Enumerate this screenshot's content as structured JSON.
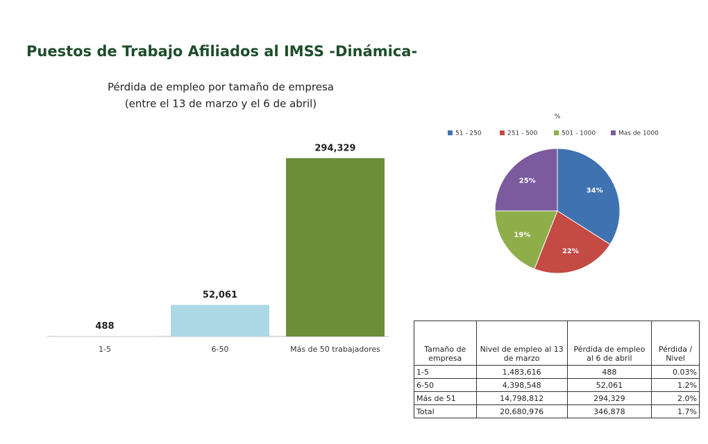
{
  "title": "Puestos de Trabajo Afiliados al IMSS -Dinámica-",
  "chart_data": [
    {
      "type": "bar",
      "title": "Pérdida de empleo por tamaño de empresa",
      "subtitle": "(entre el 13 de marzo y el 6 de abril)",
      "categories": [
        "1-5",
        "6-50",
        "Más de 50 trabajadores"
      ],
      "values": [
        488,
        52061,
        294329
      ],
      "value_labels": [
        "488",
        "52,061",
        "294,329"
      ],
      "colors": [
        "#c9dfe8",
        "#add8e6",
        "#6b8e3a"
      ]
    },
    {
      "type": "pie",
      "title": "%",
      "categories": [
        "51 - 250",
        "251 - 500",
        "501 - 1000",
        "Mas de 1000"
      ],
      "values": [
        34,
        22,
        19,
        25
      ],
      "value_labels": [
        "34%",
        "22%",
        "19%",
        "25%"
      ],
      "colors": [
        "#3f72b0",
        "#c44a44",
        "#8fae4a",
        "#7b5a9e"
      ]
    }
  ],
  "table": {
    "header": [
      "Tamaño de empresa",
      "Nivel de empleo al 13 de marzo",
      "Pérdida de empleo al 6 de abril",
      "Pérdida / Nivel"
    ],
    "rows": [
      [
        "1-5",
        "1,483,616",
        "488",
        "0.03%"
      ],
      [
        "6-50",
        "4,398,548",
        "52,061",
        "1.2%"
      ],
      [
        "Más de 51",
        "14,798,812",
        "294,329",
        "2.0%"
      ],
      [
        "Total",
        "20,680,976",
        "346,878",
        "1.7%"
      ]
    ]
  }
}
